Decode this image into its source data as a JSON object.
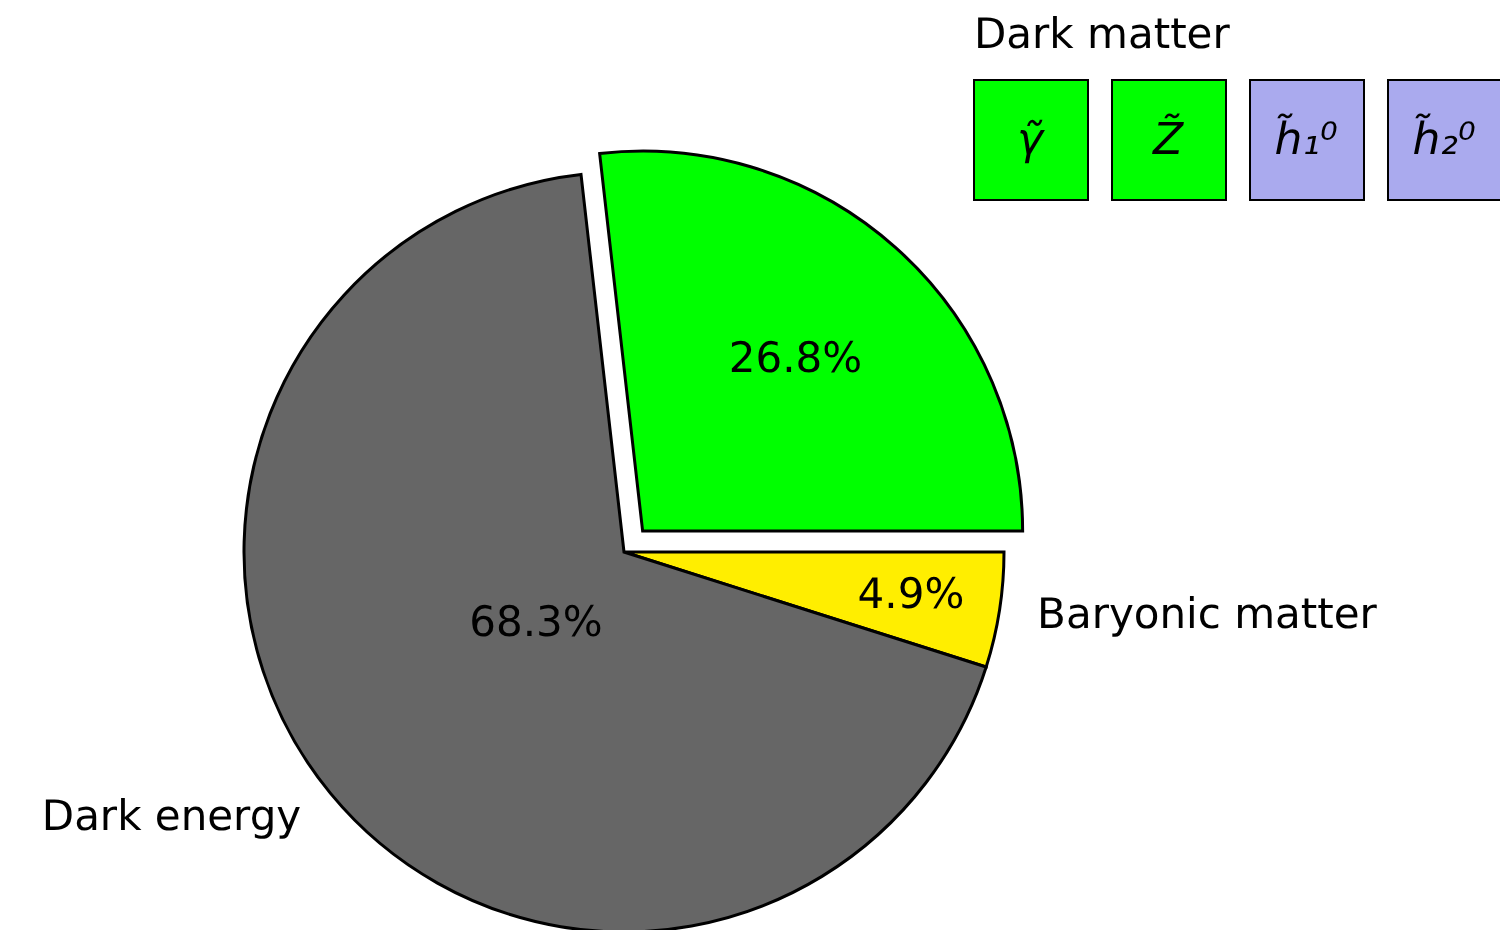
{
  "chart_data": {
    "type": "pie",
    "categories": [
      "Dark matter",
      "Baryonic matter",
      "Dark energy"
    ],
    "values": [
      26.8,
      4.9,
      68.3
    ],
    "colors": [
      "#00ff00",
      "#ffee00",
      "#666666"
    ],
    "value_labels": [
      "26.8%",
      "4.9%",
      "68.3%"
    ],
    "annotations": [
      "γ̃",
      "Z̃",
      "h̃₁⁰",
      "h̃₂⁰"
    ]
  }
}
